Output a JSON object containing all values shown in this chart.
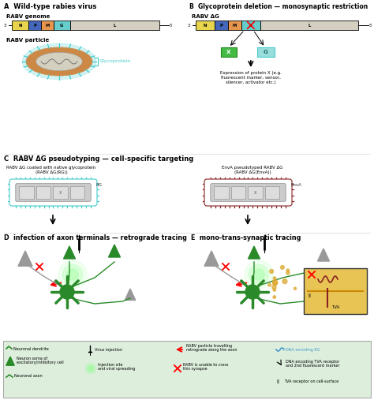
{
  "bg_color": "#ffffff",
  "panel_A_title": "A  Wild-type rabies virus",
  "panel_B_title": "B  Glycoprotein deletion — monosynaptic restriction",
  "panel_C_title": "C  RABV ΔG pseudotyping — cell-specific targeting",
  "panel_D_title": "D  infection of axon terminals — retrograde tracing",
  "panel_E_title": "E  mono-trans-synaptic tracing",
  "genome_colors": {
    "N": "#e8d44d",
    "P": "#4466bb",
    "M": "#e8954d",
    "G": "#66cccc",
    "L": "#d4cfc0"
  },
  "genome_labels": [
    "N",
    "P",
    "M",
    "G",
    "L"
  ],
  "particle_color": "#cc8844",
  "particle_inner": "#d4d0c0",
  "glyco_color": "#44cccc",
  "envA_color": "#882222",
  "green_neuron": "#2a8a2a",
  "gray_neuron": "#999999",
  "legend_box_color": "#ddeedd",
  "arrow_color": "#dd2222",
  "wave_color": "#4499cc",
  "orange_cloud": "#ddaa33"
}
